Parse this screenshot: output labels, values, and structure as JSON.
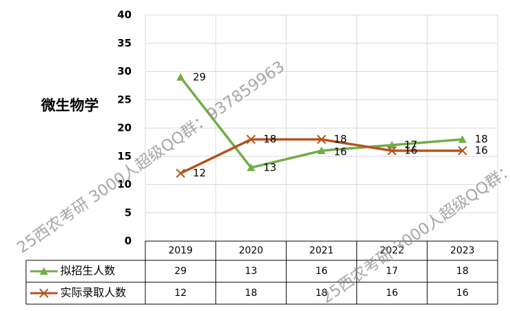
{
  "chart_data": {
    "type": "line",
    "title": "微生物学",
    "categories": [
      "2019",
      "2020",
      "2021",
      "2022",
      "2023"
    ],
    "series": [
      {
        "name": "拟招生人数",
        "color": "#70ad47",
        "marker": "triangle",
        "values": [
          29,
          13,
          16,
          17,
          18
        ]
      },
      {
        "name": "实际录取人数",
        "color": "#b5531e",
        "marker": "x",
        "values": [
          12,
          18,
          18,
          16,
          16
        ]
      }
    ],
    "ylim": [
      0,
      40
    ],
    "yticks": [
      0,
      5,
      10,
      15,
      20,
      25,
      30,
      35,
      40
    ],
    "grid": true,
    "data_table": true,
    "watermark": "25西农考研 3000人超级QQ群：937859963"
  }
}
